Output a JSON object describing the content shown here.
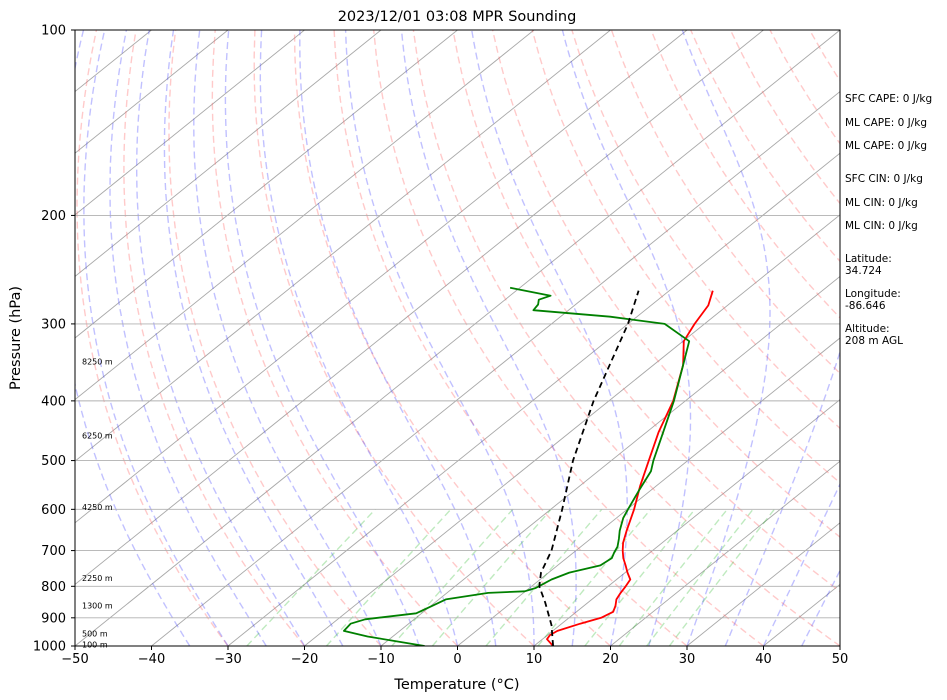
{
  "title": "2023/12/01 03:08 MPR Sounding",
  "chart_data": {
    "type": "line",
    "subtype": "skew-T log-p",
    "title": "2023/12/01 03:08 MPR Sounding",
    "xlabel": "Temperature (°C)",
    "ylabel": "Pressure (hPa)",
    "xlim": [
      -50,
      50
    ],
    "ylim": [
      1000,
      100
    ],
    "y_scale": "log",
    "x_ticks": [
      -50,
      -40,
      -30,
      -20,
      -10,
      0,
      10,
      20,
      30,
      40,
      50
    ],
    "y_ticks": [
      100,
      200,
      300,
      400,
      500,
      600,
      700,
      800,
      900,
      1000
    ],
    "grid": true,
    "height_labels": [
      {
        "p": 345,
        "text": "8250 m"
      },
      {
        "p": 455,
        "text": "6250 m"
      },
      {
        "p": 595,
        "text": "4250 m"
      },
      {
        "p": 775,
        "text": "2250 m"
      },
      {
        "p": 860,
        "text": "1300 m"
      },
      {
        "p": 955,
        "text": "500 m"
      },
      {
        "p": 995,
        "text": "100 m"
      }
    ],
    "series": [
      {
        "color": "#ff0000",
        "style": "solid",
        "points": [
          [
            1000,
            12.5
          ],
          [
            975,
            10.6
          ],
          [
            960,
            10.3
          ],
          [
            945,
            10.6
          ],
          [
            920,
            12.4
          ],
          [
            900,
            14.2
          ],
          [
            880,
            14.8
          ],
          [
            860,
            14.1
          ],
          [
            840,
            13.2
          ],
          [
            820,
            12.7
          ],
          [
            800,
            12.3
          ],
          [
            780,
            11.8
          ],
          [
            760,
            10.3
          ],
          [
            740,
            8.9
          ],
          [
            720,
            7.4
          ],
          [
            700,
            6.1
          ],
          [
            680,
            4.9
          ],
          [
            650,
            3.4
          ],
          [
            600,
            0.9
          ],
          [
            550,
            -2.1
          ],
          [
            500,
            -5.1
          ],
          [
            450,
            -8.4
          ],
          [
            400,
            -11.6
          ],
          [
            350,
            -16.1
          ],
          [
            320,
            -19.9
          ],
          [
            300,
            -21.3
          ],
          [
            280,
            -22.5
          ],
          [
            265,
            -24.3
          ]
        ]
      },
      {
        "color": "#008000",
        "style": "solid",
        "points": [
          [
            1000,
            -4.3
          ],
          [
            985,
            -8.1
          ],
          [
            965,
            -13.3
          ],
          [
            945,
            -17.3
          ],
          [
            920,
            -17.6
          ],
          [
            905,
            -16.4
          ],
          [
            885,
            -10.7
          ],
          [
            860,
            -9.8
          ],
          [
            840,
            -9.1
          ],
          [
            820,
            -4.6
          ],
          [
            815,
            -0.1
          ],
          [
            805,
            0.8
          ],
          [
            795,
            1.1
          ],
          [
            780,
            1.5
          ],
          [
            760,
            2.7
          ],
          [
            740,
            5.6
          ],
          [
            720,
            5.9
          ],
          [
            705,
            5.3
          ],
          [
            690,
            4.8
          ],
          [
            670,
            3.7
          ],
          [
            650,
            2.5
          ],
          [
            620,
            0.9
          ],
          [
            600,
            0.1
          ],
          [
            560,
            -1.5
          ],
          [
            520,
            -3.1
          ],
          [
            500,
            -4.5
          ],
          [
            450,
            -7.8
          ],
          [
            400,
            -11.5
          ],
          [
            350,
            -16.1
          ],
          [
            320,
            -19.2
          ],
          [
            300,
            -25.2
          ],
          [
            292,
            -33.5
          ],
          [
            285,
            -44.6
          ],
          [
            279,
            -44.9
          ],
          [
            274,
            -45.6
          ],
          [
            270,
            -44.7
          ],
          [
            262,
            -51.3
          ]
        ]
      },
      {
        "color": "#000000",
        "style": "dashed",
        "points": [
          [
            1000,
            12.5
          ],
          [
            925,
            8.9
          ],
          [
            850,
            4.4
          ],
          [
            800,
            1.0
          ],
          [
            760,
            -1.0
          ],
          [
            700,
            -3.2
          ],
          [
            600,
            -8.5
          ],
          [
            500,
            -15.0
          ],
          [
            400,
            -22.0
          ],
          [
            300,
            -30.0
          ],
          [
            265,
            -34.0
          ]
        ]
      }
    ]
  },
  "side_panel": {
    "sfc_cape": "SFC CAPE: 0 J/kg",
    "ml_cape_1": "ML CAPE: 0 J/kg",
    "ml_cape_2": "ML CAPE: 0 J/kg",
    "sfc_cin": "SFC CIN: 0 J/kg",
    "ml_cin_1": "ML CIN: 0 J/kg",
    "ml_cin_2": "ML CIN: 0 J/kg",
    "latitude_label": "Latitude:",
    "latitude_value": "34.724",
    "longitude_label": "Longitude:",
    "longitude_value": "-86.646",
    "altitude_label": "Altitude:",
    "altitude_value": "208 m AGL"
  }
}
